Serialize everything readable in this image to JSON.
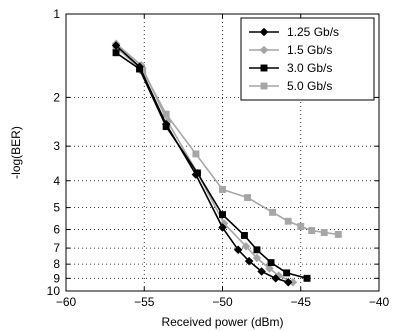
{
  "chart_data": {
    "type": "line",
    "title": "",
    "xlabel": "Received power (dBm)",
    "ylabel": "-log(BER)",
    "xlim": [
      -60,
      -40
    ],
    "ylim": [
      1,
      10
    ],
    "y_scale": "log",
    "y_reversed": true,
    "grid": true,
    "legend_position": "top-right",
    "x_ticks": [
      -60,
      -55,
      -50,
      -45,
      -40
    ],
    "x_tick_labels": [
      "−60",
      "−55",
      "−50",
      "−45",
      "−40"
    ],
    "y_ticks": [
      1,
      2,
      3,
      4,
      5,
      6,
      7,
      8,
      9,
      10
    ],
    "y_tick_labels": [
      "1",
      "2",
      "3",
      "4",
      "5",
      "6",
      "7",
      "8",
      "9",
      "10"
    ],
    "series": [
      {
        "name": "1.25 Gb/s",
        "color": "#000000",
        "marker": "diamond",
        "x": [
          -56.8,
          -55.3,
          -53.6,
          -51.7,
          -50.0,
          -49.0,
          -48.3,
          -47.5,
          -46.6,
          -45.8
        ],
        "y": [
          1.3,
          1.55,
          2.5,
          3.8,
          5.9,
          7.1,
          7.8,
          8.5,
          9.0,
          9.3
        ]
      },
      {
        "name": "1.5 Gb/s",
        "color": "#a6a6a6",
        "marker": "diamond",
        "x": [
          -56.8,
          -55.2,
          -53.5,
          -51.6,
          -49.9,
          -48.5,
          -47.8,
          -47.0,
          -46.4,
          -45.5
        ],
        "y": [
          1.28,
          1.53,
          2.45,
          3.75,
          5.7,
          6.9,
          7.6,
          8.3,
          8.8,
          9.3
        ]
      },
      {
        "name": "3.0 Gb/s",
        "color": "#000000",
        "marker": "square",
        "x": [
          -56.8,
          -55.3,
          -53.6,
          -51.6,
          -50.0,
          -48.6,
          -47.8,
          -46.9,
          -45.9,
          -44.6
        ],
        "y": [
          1.38,
          1.58,
          2.55,
          3.75,
          5.3,
          6.3,
          7.1,
          7.9,
          8.6,
          9.0
        ]
      },
      {
        "name": "5.0 Gb/s",
        "color": "#a6a6a6",
        "marker": "square",
        "x": [
          -56.8,
          -55.1,
          -53.6,
          -51.7,
          -50.0,
          -48.4,
          -46.8,
          -45.8,
          -45.0,
          -44.3,
          -43.5,
          -42.6
        ],
        "y": [
          1.32,
          1.6,
          2.3,
          3.2,
          4.3,
          4.6,
          5.2,
          5.6,
          5.85,
          6.05,
          6.15,
          6.25
        ]
      }
    ]
  }
}
